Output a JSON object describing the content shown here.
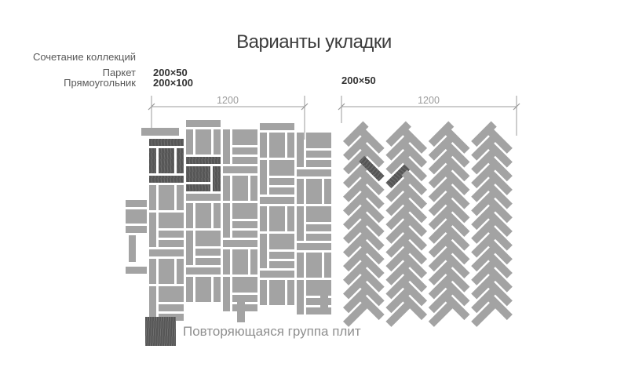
{
  "title": "Варианты укладки",
  "left_panel": {
    "collection_label": "Сочетание коллекций",
    "collection_line2": "Паркет",
    "collection_line3": "Прямоугольник",
    "tile_size_1": "200×50",
    "tile_size_2": "200×100",
    "dimension_label": "1200",
    "pattern": "parquet-basketweave-mix"
  },
  "right_panel": {
    "tile_size": "200×50",
    "dimension_label": "1200",
    "pattern": "herringbone"
  },
  "legend": {
    "label": "Повторяющаяся группа плит"
  },
  "colors": {
    "background": "#ffffff",
    "tile": "#a3a3a3",
    "tile_dark": "#565656",
    "tile_dark_hatch": "#6f6f6f",
    "dimension": "#9b9b9b",
    "title_text": "#3c3c3c",
    "label_text": "#595959",
    "size_text": "#333333",
    "legend_text": "#8f8f8f"
  }
}
